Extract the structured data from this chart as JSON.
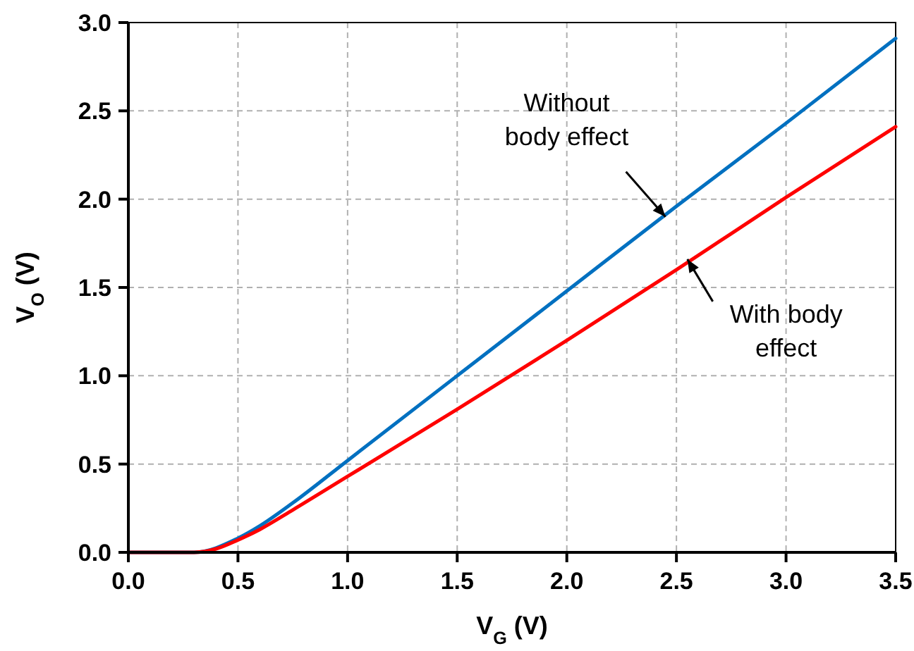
{
  "chart_data": {
    "type": "line",
    "xlabel": "V$_{G}$ (V)",
    "ylabel": "V$_{O}$ (V)",
    "xlim": [
      0,
      3.5
    ],
    "ylim": [
      0,
      3
    ],
    "xticks": [
      {
        "value": 0,
        "label": "0.0"
      },
      {
        "value": 0.5,
        "label": "0.5"
      },
      {
        "value": 1,
        "label": "1.0"
      },
      {
        "value": 1.5,
        "label": "1.5"
      },
      {
        "value": 2,
        "label": "2.0"
      },
      {
        "value": 2.5,
        "label": "2.5"
      },
      {
        "value": 3,
        "label": "3.0"
      },
      {
        "value": 3.5,
        "label": "3.5"
      }
    ],
    "yticks": [
      {
        "value": 0,
        "label": "0.0"
      },
      {
        "value": 0.5,
        "label": "0.5"
      },
      {
        "value": 1,
        "label": "1.0"
      },
      {
        "value": 1.5,
        "label": "1.5"
      },
      {
        "value": 2,
        "label": "2.0"
      },
      {
        "value": 2.5,
        "label": "2.5"
      },
      {
        "value": 3,
        "label": "3.0"
      }
    ],
    "grid": true,
    "line_style": "solid",
    "marker": "none",
    "x": [
      0,
      0.3,
      0.4,
      0.5,
      0.6,
      0.75,
      1,
      1.5,
      2,
      2.5,
      3,
      3.5
    ],
    "series": [
      {
        "color": "#0070c0",
        "x": [
          0,
          0.3,
          0.5,
          0.6,
          0.75,
          1,
          1.5,
          2,
          2.5,
          3,
          3.5
        ],
        "values": [
          0,
          0,
          0.08,
          0.15,
          0.28,
          0.52,
          1.0,
          1.48,
          1.96,
          2.43,
          2.91
        ]
      },
      {
        "color": "#ff0000",
        "values": [
          0,
          0,
          0.02,
          0.07,
          0.13,
          0.24,
          0.43,
          0.81,
          1.2,
          1.6,
          2.01,
          2.41
        ]
      }
    ],
    "annotations": [
      {
        "text": "Without body effect",
        "x": 2.45,
        "y": 1.9
      },
      {
        "text": "With body effect",
        "x": 2.55,
        "y": 1.66
      }
    ]
  }
}
